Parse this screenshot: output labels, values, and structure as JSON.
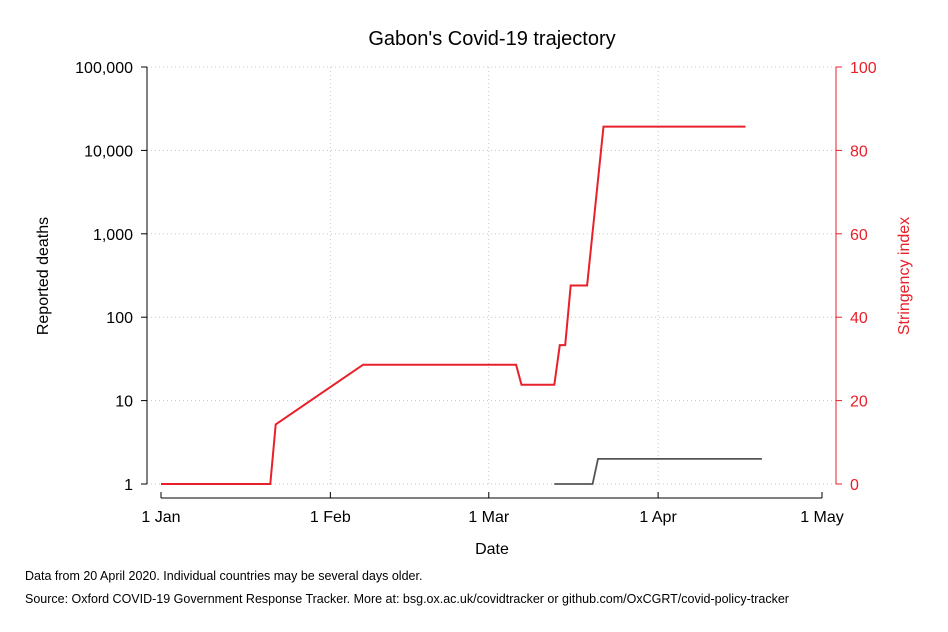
{
  "chart_data": {
    "type": "line",
    "title": "Gabon's Covid-19 trajectory",
    "xlabel": "Date",
    "ylabel_left": "Reported deaths",
    "ylabel_right": "Stringency index",
    "x_ticks": [
      "1 Jan",
      "1 Feb",
      "1 Mar",
      "1 Apr",
      "1 May"
    ],
    "x_tick_dates": [
      "2020-01-01",
      "2020-02-01",
      "2020-03-01",
      "2020-04-01",
      "2020-05-01"
    ],
    "xlim": [
      "2020-01-01",
      "2020-05-01"
    ],
    "y_left_scale": "log",
    "y_left_ticks": [
      "1",
      "10",
      "100",
      "1,000",
      "10,000",
      "100,000"
    ],
    "y_left_tick_values": [
      1,
      10,
      100,
      1000,
      10000,
      100000
    ],
    "y_left_lim": [
      1,
      100000
    ],
    "y_right_ticks": [
      "0",
      "20",
      "40",
      "60",
      "80",
      "100"
    ],
    "y_right_tick_values": [
      0,
      20,
      40,
      60,
      80,
      100
    ],
    "y_right_lim": [
      0,
      100
    ],
    "grid": true,
    "series": [
      {
        "axis": "left",
        "color": "#555555",
        "points": [
          [
            "2020-03-13",
            1
          ],
          [
            "2020-03-20",
            1
          ],
          [
            "2020-03-21",
            2
          ],
          [
            "2020-04-20",
            2
          ]
        ]
      },
      {
        "axis": "right",
        "color": "#e8202a",
        "points": [
          [
            "2020-01-01",
            0
          ],
          [
            "2020-01-21",
            0
          ],
          [
            "2020-01-22",
            14.3
          ],
          [
            "2020-02-07",
            28.6
          ],
          [
            "2020-03-06",
            28.6
          ],
          [
            "2020-03-07",
            23.8
          ],
          [
            "2020-03-13",
            23.8
          ],
          [
            "2020-03-14",
            33.3
          ],
          [
            "2020-03-15",
            33.3
          ],
          [
            "2020-03-16",
            47.6
          ],
          [
            "2020-03-19",
            47.6
          ],
          [
            "2020-03-22",
            85.7
          ],
          [
            "2020-04-17",
            85.7
          ]
        ]
      }
    ]
  },
  "footnotes": {
    "line1": "Data from 20 April 2020. Individual countries may be several days older.",
    "line2": "Source: Oxford COVID-19 Government Response Tracker. More at: bsg.ox.ac.uk/covidtracker or github.com/OxCGRT/covid-policy-tracker"
  },
  "colors": {
    "left_axis": "#000000",
    "right_axis": "#e8202a",
    "grid": "#c8c8c8"
  }
}
